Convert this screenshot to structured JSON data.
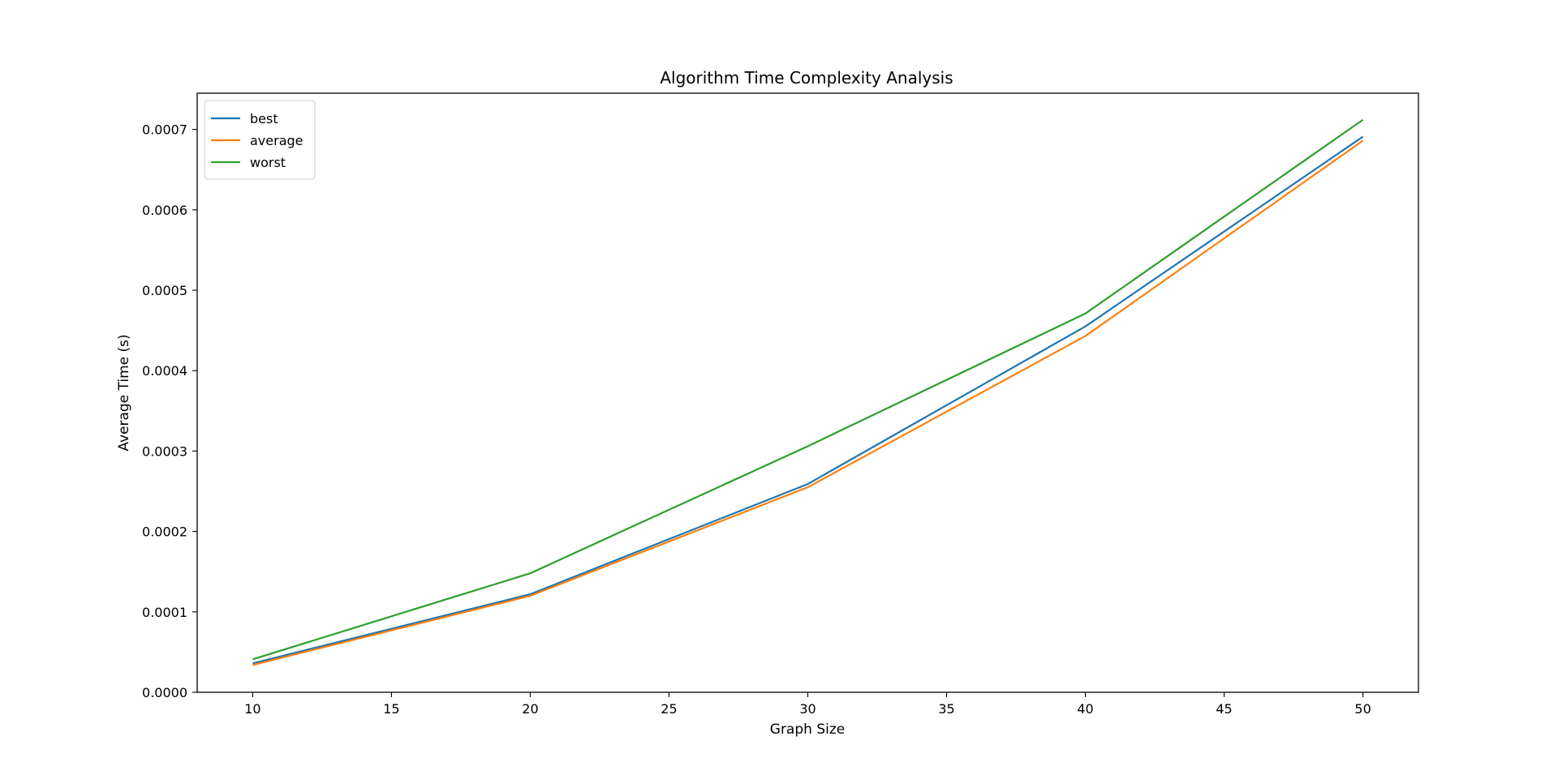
{
  "chart_data": {
    "type": "line",
    "title": "Algorithm Time Complexity Analysis",
    "xlabel": "Graph Size",
    "ylabel": "Average Time (s)",
    "x": [
      10,
      20,
      30,
      40,
      50
    ],
    "xlim": [
      8,
      52
    ],
    "ylim": [
      0,
      0.000745
    ],
    "xticks": [
      10,
      15,
      20,
      25,
      30,
      35,
      40,
      45,
      50
    ],
    "xtick_labels": [
      "10",
      "15",
      "20",
      "25",
      "30",
      "35",
      "40",
      "45",
      "50"
    ],
    "yticks": [
      0,
      0.0001,
      0.0002,
      0.0003,
      0.0004,
      0.0005,
      0.0006,
      0.0007
    ],
    "ytick_labels": [
      "0.0000",
      "0.0001",
      "0.0002",
      "0.0003",
      "0.0004",
      "0.0005",
      "0.0006",
      "0.0007"
    ],
    "grid": false,
    "legend_position": "top-left",
    "series": [
      {
        "name": "best",
        "color": "#1f77b4",
        "values": [
          3.6e-05,
          0.000122,
          0.000259,
          0.000455,
          0.000691
        ]
      },
      {
        "name": "average",
        "color": "#ff7f0e",
        "values": [
          3.4e-05,
          0.00012,
          0.000255,
          0.000443,
          0.000686
        ]
      },
      {
        "name": "worst",
        "color": "#2ca02c",
        "values": [
          4.1e-05,
          0.000148,
          0.000306,
          0.000471,
          0.000712
        ]
      }
    ]
  }
}
